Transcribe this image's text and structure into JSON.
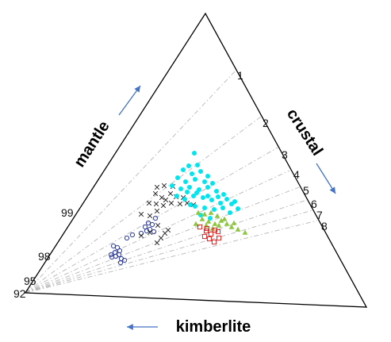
{
  "chart_data": {
    "type": "scatter",
    "title": "",
    "axis_labels": {
      "left": "mantle",
      "right": "crustal",
      "bottom": "kimberlite"
    },
    "left_edge_ticks": [
      "99",
      "98",
      "95",
      "92"
    ],
    "right_edge_ticks": [
      "1",
      "2",
      "3",
      "4",
      "5",
      "6",
      "7",
      "8"
    ],
    "arrow_directions": {
      "left": "up",
      "right": "down",
      "bottom": "left"
    },
    "colors": {
      "triangle": "#000000",
      "arrow": "#4472c4",
      "guide": "#b7b7b7"
    },
    "series": [
      {
        "marker": "circle-open",
        "color": "#2f3e9e",
        "points": [
          [
            143,
            310
          ],
          [
            148,
            312
          ],
          [
            151,
            316
          ],
          [
            145,
            318
          ],
          [
            140,
            321
          ],
          [
            150,
            321
          ],
          [
            146,
            323
          ],
          [
            141,
            324
          ],
          [
            153,
            326
          ],
          [
            157,
            328
          ],
          [
            152,
            331
          ],
          [
            160,
            300
          ],
          [
            167,
            296
          ],
          [
            178,
            294
          ],
          [
            185,
            291
          ],
          [
            183,
            286
          ],
          [
            189,
            289
          ],
          [
            192,
            283
          ],
          [
            196,
            275
          ],
          [
            187,
            281
          ],
          [
            194,
            292
          ]
        ]
      },
      {
        "marker": "x",
        "color": "#222222",
        "points": [
          [
            198,
            236
          ],
          [
            207,
            234
          ],
          [
            218,
            235
          ],
          [
            196,
            244
          ],
          [
            204,
            249
          ],
          [
            215,
            244
          ],
          [
            222,
            248
          ],
          [
            209,
            252
          ],
          [
            188,
            256
          ],
          [
            197,
            257
          ],
          [
            206,
            259
          ],
          [
            216,
            256
          ],
          [
            227,
            257
          ],
          [
            236,
            256
          ],
          [
            178,
            270
          ],
          [
            189,
            272
          ],
          [
            198,
            266
          ],
          [
            178,
            297
          ],
          [
            189,
            293
          ],
          [
            199,
            284
          ],
          [
            203,
            300
          ],
          [
            208,
            294
          ],
          [
            198,
            306
          ],
          [
            212,
            290
          ],
          [
            244,
            258
          ],
          [
            231,
            249
          ]
        ]
      },
      {
        "marker": "circle-filled",
        "color": "#00e5ee",
        "points": [
          [
            245,
            193
          ],
          [
            238,
            209
          ],
          [
            249,
            208
          ],
          [
            231,
            214
          ],
          [
            242,
            219
          ],
          [
            253,
            216
          ],
          [
            262,
            222
          ],
          [
            224,
            224
          ],
          [
            234,
            229
          ],
          [
            246,
            226
          ],
          [
            258,
            229
          ],
          [
            268,
            231
          ],
          [
            217,
            234
          ],
          [
            228,
            238
          ],
          [
            239,
            236
          ],
          [
            251,
            239
          ],
          [
            262,
            236
          ],
          [
            273,
            241
          ],
          [
            282,
            245
          ],
          [
            223,
            247
          ],
          [
            233,
            251
          ],
          [
            244,
            247
          ],
          [
            256,
            249
          ],
          [
            267,
            252
          ],
          [
            278,
            256
          ],
          [
            292,
            257
          ],
          [
            246,
            260
          ],
          [
            258,
            262
          ],
          [
            270,
            264
          ],
          [
            281,
            262
          ],
          [
            290,
            268
          ],
          [
            300,
            263
          ],
          [
            236,
            242
          ],
          [
            262,
            247
          ],
          [
            275,
            248
          ],
          [
            286,
            251
          ],
          [
            296,
            254
          ],
          [
            248,
            243
          ],
          [
            240,
            258
          ],
          [
            253,
            271
          ],
          [
            265,
            275
          ]
        ]
      },
      {
        "marker": "triangle-filled",
        "color": "#8dc63f",
        "points": [
          [
            250,
            268
          ],
          [
            258,
            270
          ],
          [
            266,
            268
          ],
          [
            274,
            272
          ],
          [
            255,
            276
          ],
          [
            263,
            279
          ],
          [
            271,
            282
          ],
          [
            279,
            278
          ],
          [
            286,
            282
          ],
          [
            292,
            286
          ],
          [
            300,
            289
          ],
          [
            309,
            293
          ],
          [
            260,
            284
          ],
          [
            268,
            288
          ],
          [
            276,
            284
          ],
          [
            283,
            276
          ],
          [
            247,
            282
          ],
          [
            295,
            281
          ]
        ]
      },
      {
        "marker": "square-open",
        "color": "#dd2222",
        "points": [
          [
            252,
            286
          ],
          [
            260,
            291
          ],
          [
            266,
            295
          ],
          [
            271,
            290
          ],
          [
            258,
            298
          ],
          [
            264,
            301
          ],
          [
            270,
            305
          ],
          [
            276,
            300
          ],
          [
            261,
            288
          ],
          [
            275,
            292
          ]
        ]
      }
    ]
  }
}
